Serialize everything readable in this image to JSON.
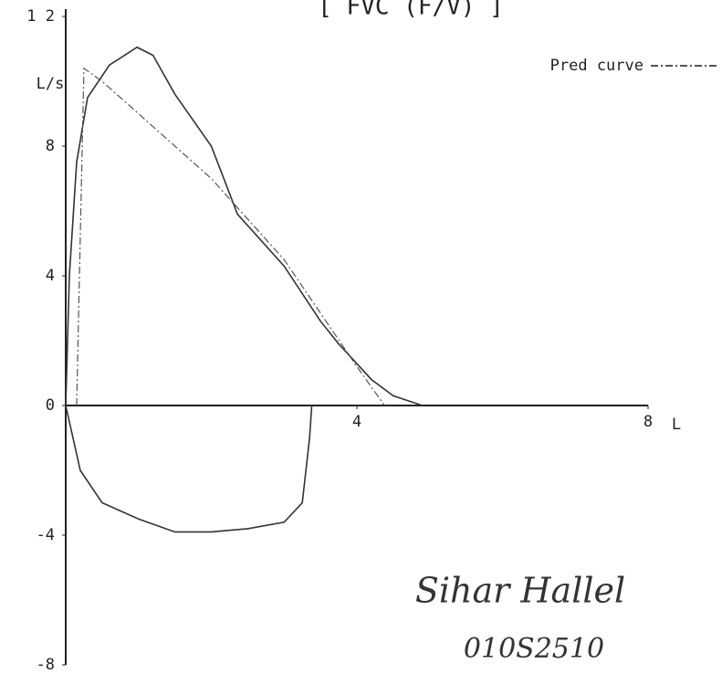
{
  "chart_data": {
    "type": "line",
    "title": "[ FVC (F/V) ]",
    "x_label": "L",
    "y_label": "L/s",
    "xlim": [
      0,
      8
    ],
    "ylim": [
      -8,
      12
    ],
    "xticks": [
      4,
      8
    ],
    "yticks": [
      -8,
      -4,
      0,
      4,
      8,
      {
        "value": 12,
        "label": "1 2"
      }
    ],
    "series": [
      {
        "color": "#333",
        "style": "solid",
        "x": [
          0,
          0.05,
          0.15,
          0.3,
          0.6,
          0.98,
          1.2,
          1.5,
          2,
          2.36,
          3,
          3.5,
          3.75,
          4.2,
          4.5,
          4.9
        ],
        "values": [
          0,
          4,
          7.5,
          9.5,
          10.5,
          11.05,
          10.8,
          9.6,
          8,
          5.9,
          4.3,
          2.6,
          1.9,
          0.8,
          0.3,
          0
        ]
      },
      {
        "color": "#333",
        "style": "solid",
        "x": [
          0,
          0.2,
          0.5,
          1,
          1.5,
          2,
          2.5,
          3,
          3.25,
          3.35,
          3.38
        ],
        "values": [
          0,
          -2,
          -3,
          -3.5,
          -3.9,
          -3.9,
          -3.8,
          -3.6,
          -3,
          -1,
          0
        ]
      },
      {
        "name": "Pred curve",
        "color": "#555",
        "style": "dashdot",
        "x": [
          0.15,
          0.25,
          0.5,
          1,
          2,
          3,
          4,
          4.38
        ],
        "values": [
          0,
          10.4,
          10,
          9,
          7,
          4.5,
          1.2,
          0
        ]
      }
    ],
    "annotations": [
      "Sihar Hallel",
      "010S2510"
    ]
  }
}
